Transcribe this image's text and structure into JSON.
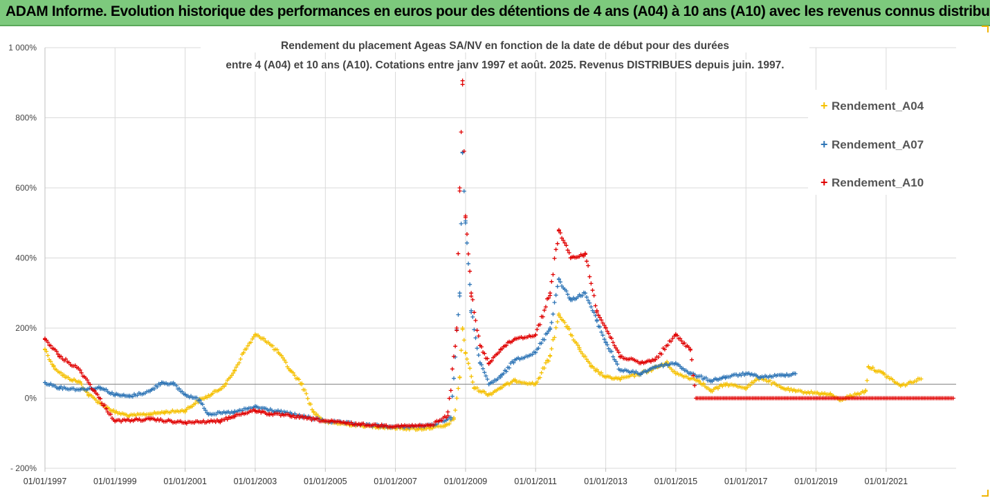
{
  "banner": {
    "title": "ADAM Informe. Evolution historique des performances en euros pour des détentions de 4 ans (A04) à 10 ans (A10) avec les revenus connus distribués",
    "color": "#7dc97d"
  },
  "chart_data": {
    "type": "scatter",
    "title_line1": "Rendement du placement Ageas SA/NV en fonction de la date de début pour des durées",
    "title_line2": "entre 4 (A04) et 10 ans (A10). Cotations entre janv 1997 et août. 2025. Revenus DISTRIBUES depuis juin. 1997.",
    "y_ticks": [
      "1 000%",
      "800%",
      "600%",
      "400%",
      "200%",
      "0%",
      "- 200%"
    ],
    "y_tick_values": [
      1000,
      800,
      600,
      400,
      200,
      0,
      -200
    ],
    "x_ticks": [
      "01/01/1997",
      "01/01/1999",
      "01/01/2001",
      "01/01/2003",
      "01/01/2005",
      "01/01/2007",
      "01/01/2009",
      "01/01/2011",
      "01/01/2013",
      "01/01/2015",
      "01/01/2017",
      "01/01/2019",
      "01/01/2021"
    ],
    "x_range": [
      "1997-01-01",
      "2022-12-31"
    ],
    "ylim": [
      -200,
      1000
    ],
    "reference_line_y": 40,
    "grid": true,
    "legend_position": "top-right",
    "marker": "+",
    "series": [
      {
        "name": "Rendement_A04",
        "color": "#f5c000",
        "points": [
          [
            "1997-01-01",
            140
          ],
          [
            "1997-04-01",
            90
          ],
          [
            "1997-08-01",
            60
          ],
          [
            "1998-01-01",
            45
          ],
          [
            "1998-04-01",
            10
          ],
          [
            "1998-09-01",
            -20
          ],
          [
            "1999-01-01",
            -40
          ],
          [
            "1999-06-01",
            -50
          ],
          [
            "2000-01-01",
            -45
          ],
          [
            "2000-06-01",
            -40
          ],
          [
            "2001-01-01",
            -35
          ],
          [
            "2001-06-01",
            -5
          ],
          [
            "2001-10-01",
            10
          ],
          [
            "2002-03-01",
            40
          ],
          [
            "2002-06-01",
            80
          ],
          [
            "2002-09-01",
            130
          ],
          [
            "2003-01-01",
            180
          ],
          [
            "2003-04-01",
            170
          ],
          [
            "2003-09-01",
            130
          ],
          [
            "2004-01-01",
            80
          ],
          [
            "2004-05-01",
            40
          ],
          [
            "2004-09-01",
            -40
          ],
          [
            "2005-01-01",
            -68
          ],
          [
            "2006-01-01",
            -78
          ],
          [
            "2007-01-01",
            -85
          ],
          [
            "2007-09-01",
            -88
          ],
          [
            "2008-06-01",
            -80
          ],
          [
            "2008-09-01",
            -60
          ],
          [
            "2008-11-01",
            60
          ],
          [
            "2008-12-01",
            200
          ],
          [
            "2009-01-01",
            130
          ],
          [
            "2009-04-01",
            30
          ],
          [
            "2009-09-01",
            10
          ],
          [
            "2010-01-01",
            30
          ],
          [
            "2010-06-01",
            50
          ],
          [
            "2011-01-01",
            40
          ],
          [
            "2011-06-01",
            120
          ],
          [
            "2011-09-01",
            240
          ],
          [
            "2011-12-01",
            200
          ],
          [
            "2012-04-01",
            140
          ],
          [
            "2012-08-01",
            90
          ],
          [
            "2013-01-01",
            60
          ],
          [
            "2013-06-01",
            55
          ],
          [
            "2014-01-01",
            70
          ],
          [
            "2014-10-01",
            100
          ],
          [
            "2015-01-01",
            70
          ],
          [
            "2015-09-01",
            50
          ],
          [
            "2016-01-01",
            20
          ],
          [
            "2016-06-01",
            40
          ],
          [
            "2017-01-01",
            30
          ],
          [
            "2017-06-01",
            60
          ],
          [
            "2018-01-01",
            30
          ],
          [
            "2018-06-01",
            20
          ],
          [
            "2019-01-01",
            15
          ],
          [
            "2019-06-01",
            10
          ],
          [
            "2019-09-01",
            -5
          ],
          [
            "2020-06-01",
            20
          ],
          [
            "2020-07-01",
            90
          ],
          [
            "2020-12-01",
            70
          ],
          [
            "2021-06-01",
            35
          ],
          [
            "2022-01-01",
            55
          ]
        ]
      },
      {
        "name": "Rendement_A07",
        "color": "#2e75b6",
        "points": [
          [
            "1997-01-01",
            45
          ],
          [
            "1997-06-01",
            30
          ],
          [
            "1998-01-01",
            25
          ],
          [
            "1998-08-01",
            30
          ],
          [
            "1999-01-01",
            10
          ],
          [
            "1999-06-01",
            5
          ],
          [
            "2000-01-01",
            20
          ],
          [
            "2000-05-01",
            45
          ],
          [
            "2000-09-01",
            40
          ],
          [
            "2001-01-01",
            10
          ],
          [
            "2001-06-01",
            -5
          ],
          [
            "2001-09-01",
            -45
          ],
          [
            "2002-06-01",
            -40
          ],
          [
            "2003-01-01",
            -25
          ],
          [
            "2004-01-01",
            -45
          ],
          [
            "2005-01-01",
            -65
          ],
          [
            "2006-01-01",
            -75
          ],
          [
            "2007-01-01",
            -82
          ],
          [
            "2008-01-01",
            -78
          ],
          [
            "2008-08-01",
            -55
          ],
          [
            "2008-11-01",
            300
          ],
          [
            "2008-12-01",
            700
          ],
          [
            "2009-01-01",
            500
          ],
          [
            "2009-03-01",
            250
          ],
          [
            "2009-06-01",
            100
          ],
          [
            "2009-09-01",
            40
          ],
          [
            "2010-01-01",
            60
          ],
          [
            "2010-06-01",
            110
          ],
          [
            "2011-01-01",
            130
          ],
          [
            "2011-06-01",
            200
          ],
          [
            "2011-09-01",
            340
          ],
          [
            "2012-01-01",
            280
          ],
          [
            "2012-06-01",
            300
          ],
          [
            "2012-10-01",
            220
          ],
          [
            "2013-01-01",
            160
          ],
          [
            "2013-06-01",
            80
          ],
          [
            "2014-01-01",
            70
          ],
          [
            "2014-06-01",
            90
          ],
          [
            "2015-01-01",
            100
          ],
          [
            "2015-06-01",
            70
          ],
          [
            "2016-01-01",
            50
          ],
          [
            "2016-06-01",
            60
          ],
          [
            "2017-01-01",
            70
          ],
          [
            "2017-06-01",
            60
          ],
          [
            "2018-01-01",
            65
          ],
          [
            "2018-06-01",
            70
          ]
        ]
      },
      {
        "name": "Rendement_A10",
        "color": "#e00000",
        "points": [
          [
            "1997-01-01",
            170
          ],
          [
            "1997-06-01",
            120
          ],
          [
            "1998-01-01",
            80
          ],
          [
            "1998-06-01",
            20
          ],
          [
            "1998-10-01",
            -30
          ],
          [
            "1999-01-01",
            -65
          ],
          [
            "2000-01-01",
            -60
          ],
          [
            "2001-01-01",
            -70
          ],
          [
            "2002-01-01",
            -65
          ],
          [
            "2002-06-01",
            -50
          ],
          [
            "2003-01-01",
            -35
          ],
          [
            "2003-06-01",
            -45
          ],
          [
            "2004-01-01",
            -50
          ],
          [
            "2005-01-01",
            -65
          ],
          [
            "2006-01-01",
            -75
          ],
          [
            "2007-01-01",
            -80
          ],
          [
            "2008-01-01",
            -78
          ],
          [
            "2008-07-01",
            -50
          ],
          [
            "2008-10-01",
            200
          ],
          [
            "2008-11-01",
            600
          ],
          [
            "2008-12-01",
            895
          ],
          [
            "2009-01-01",
            520
          ],
          [
            "2009-03-01",
            300
          ],
          [
            "2009-06-01",
            150
          ],
          [
            "2009-09-01",
            100
          ],
          [
            "2010-01-01",
            140
          ],
          [
            "2010-06-01",
            170
          ],
          [
            "2011-01-01",
            180
          ],
          [
            "2011-06-01",
            300
          ],
          [
            "2011-09-01",
            480
          ],
          [
            "2012-01-01",
            400
          ],
          [
            "2012-06-01",
            410
          ],
          [
            "2012-10-01",
            250
          ],
          [
            "2013-01-01",
            200
          ],
          [
            "2013-06-01",
            120
          ],
          [
            "2014-01-01",
            100
          ],
          [
            "2014-06-01",
            110
          ],
          [
            "2015-01-01",
            180
          ],
          [
            "2015-06-01",
            140
          ],
          [
            "2015-08-01",
            0
          ],
          [
            "2022-12-01",
            0
          ]
        ]
      }
    ]
  }
}
